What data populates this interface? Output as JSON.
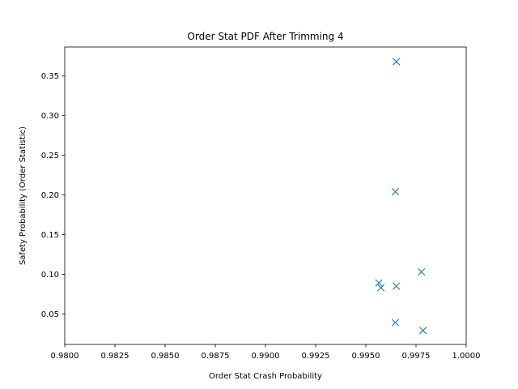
{
  "chart_data": {
    "type": "scatter",
    "title": "Order Stat PDF After Trimming 4",
    "xlabel": "Order Stat Crash Probability",
    "ylabel": "Safety Probability (Order Statistic)",
    "xlim": [
      0.98,
      1.0
    ],
    "ylim": [
      0.0115,
      0.3865
    ],
    "x_ticks": [
      0.98,
      0.9825,
      0.985,
      0.9875,
      0.99,
      0.9925,
      0.995,
      0.9975,
      1.0
    ],
    "x_tick_labels": [
      "0.9800",
      "0.9825",
      "0.9850",
      "0.9875",
      "0.9900",
      "0.9925",
      "0.9950",
      "0.9975",
      "1.0000"
    ],
    "y_ticks": [
      0.05,
      0.1,
      0.15,
      0.2,
      0.25,
      0.3,
      0.35
    ],
    "y_tick_labels": [
      "0.05",
      "0.10",
      "0.15",
      "0.20",
      "0.25",
      "0.30",
      "0.35"
    ],
    "grid": false,
    "marker": "x",
    "color": "#1f77b4",
    "series": [
      {
        "points": [
          {
            "x": 0.99652,
            "y": 0.368
          },
          {
            "x": 0.99647,
            "y": 0.204
          },
          {
            "x": 0.99777,
            "y": 0.103
          },
          {
            "x": 0.99565,
            "y": 0.089
          },
          {
            "x": 0.99652,
            "y": 0.085
          },
          {
            "x": 0.99575,
            "y": 0.083
          },
          {
            "x": 0.99647,
            "y": 0.039
          },
          {
            "x": 0.99785,
            "y": 0.029
          }
        ]
      }
    ]
  }
}
